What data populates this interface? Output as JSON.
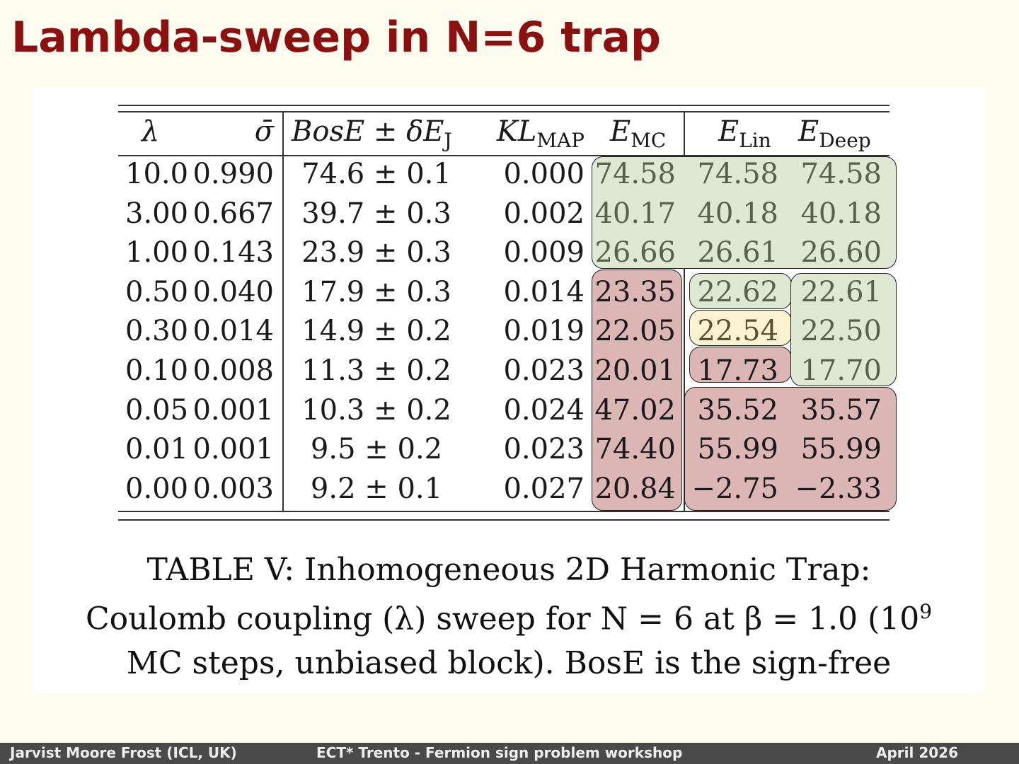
{
  "header": {
    "title": "Lambda-sweep in N=6 trap"
  },
  "table": {
    "columns": [
      {
        "text": "λ"
      },
      {
        "text": "σ̄"
      },
      {
        "text": "BosE ± δE",
        "sub": "J"
      },
      {
        "text": "KL",
        "sub": "MAP"
      },
      {
        "text": "E",
        "sub": "MC"
      },
      {
        "text": "E",
        "sub": "Lin"
      },
      {
        "text": "E",
        "sub": "Deep"
      }
    ],
    "rows": [
      [
        "10.0",
        "0.990",
        "74.6 ± 0.1",
        "0.000",
        "74.58",
        "74.58",
        "74.58"
      ],
      [
        "3.00",
        "0.667",
        "39.7 ± 0.3",
        "0.002",
        "40.17",
        "40.18",
        "40.18"
      ],
      [
        "1.00",
        "0.143",
        "23.9 ± 0.3",
        "0.009",
        "26.66",
        "26.61",
        "26.60"
      ],
      [
        "0.50",
        "0.040",
        "17.9 ± 0.3",
        "0.014",
        "23.35",
        "22.62",
        "22.61"
      ],
      [
        "0.30",
        "0.014",
        "14.9 ± 0.2",
        "0.019",
        "22.05",
        "22.54",
        "22.50"
      ],
      [
        "0.10",
        "0.008",
        "11.3 ± 0.2",
        "0.023",
        "20.01",
        "17.73",
        "17.70"
      ],
      [
        "0.05",
        "0.001",
        "10.3 ± 0.2",
        "0.024",
        "47.02",
        "35.52",
        "35.57"
      ],
      [
        "0.01",
        "0.001",
        "9.5 ± 0.2",
        "0.023",
        "74.40",
        "55.99",
        "55.99"
      ],
      [
        "0.00",
        "0.003",
        "9.2 ± 0.1",
        "0.027",
        "20.84",
        "−2.75",
        "−2.33"
      ]
    ]
  },
  "caption": {
    "lines": [
      {
        "text": "TABLE V: Inhomogeneous 2D Harmonic Trap:"
      },
      {
        "text": "Coulomb coupling (λ) sweep for N = 6 at β = 1.0 (10",
        "sup": "9"
      },
      {
        "text": "MC steps, unbiased block). BosE is the sign-free"
      }
    ]
  },
  "footer": {
    "author": "Jarvist Moore Frost  (ICL, UK)",
    "event": "ECT* Trento - Fermion sign problem workshop",
    "date": "April  2026"
  }
}
